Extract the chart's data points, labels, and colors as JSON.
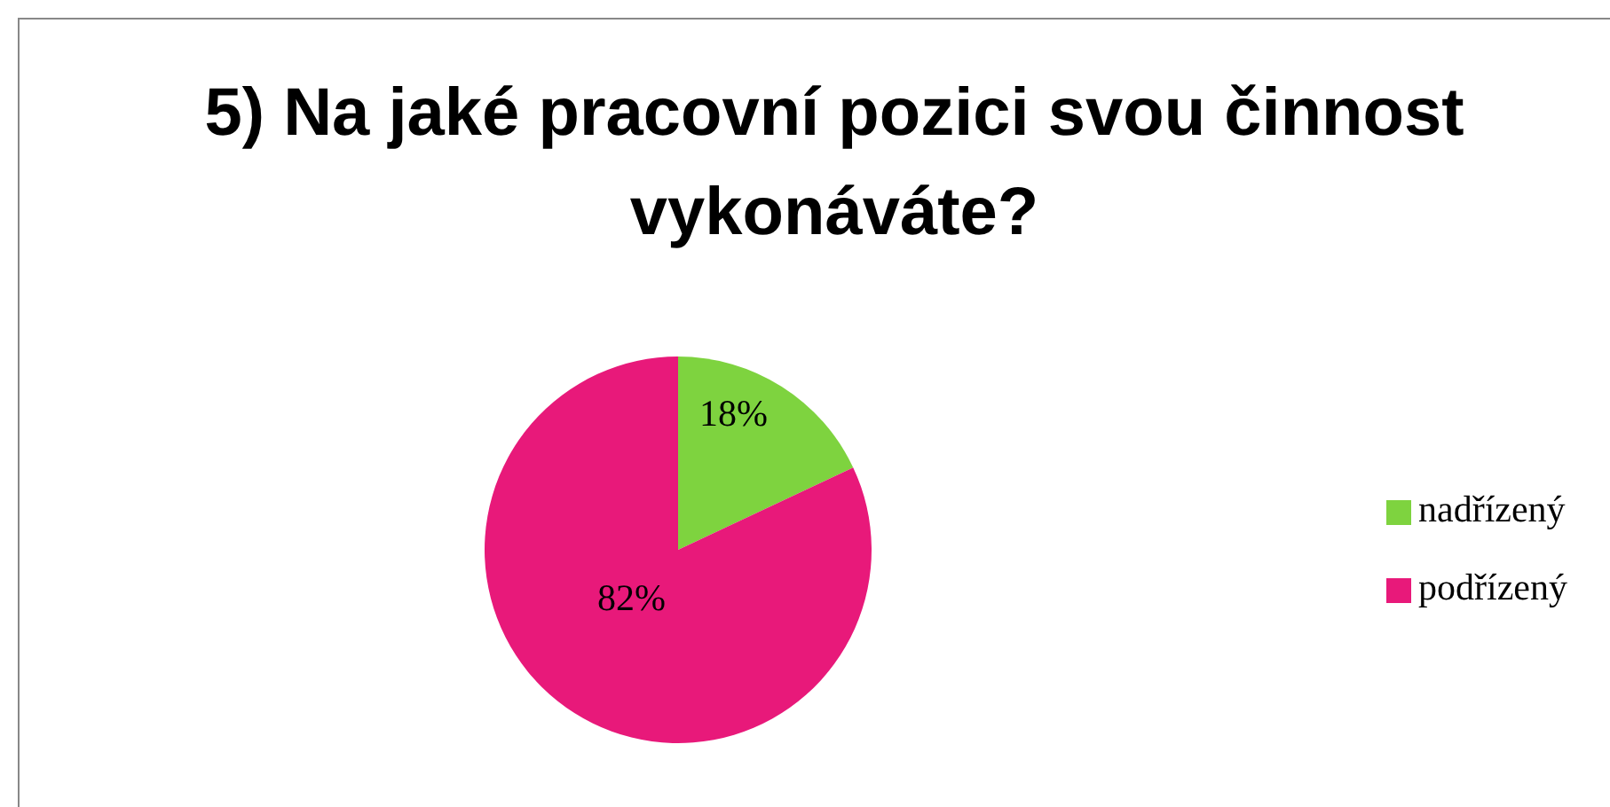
{
  "chart_data": {
    "type": "pie",
    "title": "5) Na jaké pracovní pozici svou činnost vykonáváte?",
    "categories": [
      "nadřízený",
      "podřízený"
    ],
    "values": [
      18,
      82
    ],
    "colors": [
      "#7ed33f",
      "#e8197a"
    ],
    "value_labels": [
      "18%",
      "82%"
    ],
    "legend": "right"
  }
}
